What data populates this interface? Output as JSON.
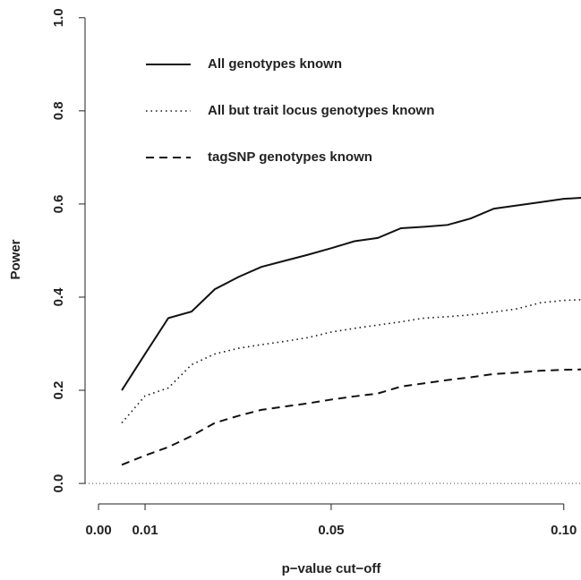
{
  "chart_data": {
    "type": "line",
    "x_label": "p−value cut−off",
    "y_label": "Power",
    "x": [
      0.005,
      0.01,
      0.015,
      0.02,
      0.025,
      0.03,
      0.035,
      0.04,
      0.045,
      0.05,
      0.055,
      0.06,
      0.065,
      0.07,
      0.075,
      0.08,
      0.085,
      0.09,
      0.095,
      0.1,
      0.105
    ],
    "series": [
      {
        "name": "All genotypes known",
        "color": "#111111",
        "dash": "solid",
        "values": [
          0.2,
          0.278,
          0.355,
          0.369,
          0.417,
          0.443,
          0.465,
          0.478,
          0.491,
          0.505,
          0.52,
          0.527,
          0.548,
          0.551,
          0.555,
          0.569,
          0.59,
          0.597,
          0.604,
          0.611,
          0.614
        ]
      },
      {
        "name": "All but trait locus genotypes known",
        "color": "#111111",
        "dash": "dotted",
        "values": [
          0.13,
          0.188,
          0.205,
          0.255,
          0.278,
          0.29,
          0.298,
          0.305,
          0.313,
          0.325,
          0.333,
          0.34,
          0.347,
          0.355,
          0.358,
          0.362,
          0.368,
          0.375,
          0.388,
          0.393,
          0.395
        ]
      },
      {
        "name": "tagSNP genotypes known",
        "color": "#111111",
        "dash": "dashed",
        "values": [
          0.04,
          0.06,
          0.078,
          0.102,
          0.13,
          0.145,
          0.158,
          0.165,
          0.172,
          0.18,
          0.187,
          0.193,
          0.208,
          0.215,
          0.222,
          0.228,
          0.235,
          0.238,
          0.242,
          0.244,
          0.245
        ]
      }
    ],
    "hline": 0,
    "xlim": [
      -0.0029,
      0.1037
    ],
    "ylim": [
      -0.044,
      1.038
    ],
    "xticks": [
      {
        "value": 0,
        "label": "0.00"
      },
      {
        "value": 0.01,
        "label": "0.01"
      },
      {
        "value": 0.05,
        "label": "0.05"
      },
      {
        "value": 0.1,
        "label": "0.10"
      }
    ],
    "yticks": [
      {
        "value": 0,
        "label": "0.0"
      },
      {
        "value": 0.2,
        "label": "0.2"
      },
      {
        "value": 0.4,
        "label": "0.4"
      },
      {
        "value": 0.6,
        "label": "0.6"
      },
      {
        "value": 0.8,
        "label": "0.8"
      },
      {
        "value": 1,
        "label": "1.0"
      }
    ]
  }
}
